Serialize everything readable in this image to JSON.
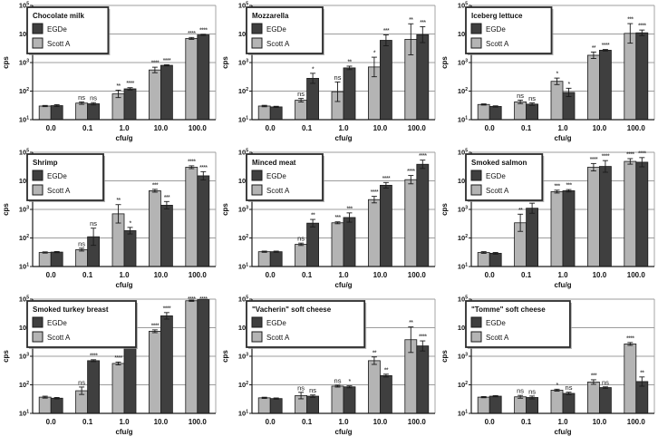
{
  "figure": {
    "background": "#ffffff",
    "ylabel": "cps",
    "xlabel": "cfu/g",
    "categories": [
      "0.0",
      "0.1",
      "1.0",
      "10.0",
      "100.0"
    ],
    "ytick_base": "10",
    "ytick_exponents": [
      1,
      2,
      3,
      4,
      5
    ],
    "legend_order": [
      "EGDe",
      "Scott A"
    ],
    "bar_order": [
      "Scott A",
      "EGDe"
    ],
    "colors": {
      "EGDe": "#3f3f3f",
      "Scott A": "#b4b4b4",
      "grid": "#9c9c9c",
      "axis": "#1a1a1a",
      "legend_border": "#2b2b2b",
      "legend_shadow": "#999999"
    }
  },
  "chart_data": [
    {
      "type": "bar",
      "title": "Chocolate milk",
      "xlabel": "cfu/g",
      "ylabel": "cps",
      "yscale": "log",
      "ylim": [
        10,
        100000
      ],
      "categories": [
        "0.0",
        "0.1",
        "1.0",
        "10.0",
        "100.0"
      ],
      "series": [
        {
          "name": "Scott A",
          "values": [
            30,
            38,
            80,
            550,
            7000
          ],
          "err_factor": [
            1.05,
            1.1,
            1.35,
            1.25,
            1.08
          ],
          "sig": [
            "",
            "ns",
            "**",
            "****",
            "****"
          ]
        },
        {
          "name": "EGDe",
          "values": [
            31,
            36,
            120,
            800,
            9300
          ],
          "err_factor": [
            1.08,
            1.1,
            1.1,
            1.05,
            1.04
          ],
          "sig": [
            "",
            "ns",
            "****",
            "****",
            "****"
          ]
        }
      ]
    },
    {
      "type": "bar",
      "title": "Mozzarella",
      "xlabel": "cfu/g",
      "ylabel": "cps",
      "yscale": "log",
      "ylim": [
        10,
        100000
      ],
      "categories": [
        "0.0",
        "0.1",
        "1.0",
        "10.0",
        "100.0"
      ],
      "series": [
        {
          "name": "Scott A",
          "values": [
            30,
            48,
            95,
            700,
            6500
          ],
          "err_factor": [
            1.06,
            1.15,
            2.2,
            2.2,
            3.5
          ],
          "sig": [
            "",
            "ns",
            "ns",
            "*",
            "**"
          ]
        },
        {
          "name": "EGDe",
          "values": [
            28,
            280,
            650,
            6000,
            9500
          ],
          "err_factor": [
            1.05,
            1.5,
            1.15,
            1.55,
            1.9
          ],
          "sig": [
            "",
            "*",
            "**",
            "***",
            "***"
          ]
        }
      ]
    },
    {
      "type": "bar",
      "title": "Iceberg lettuce",
      "xlabel": "cfu/g",
      "ylabel": "cps",
      "yscale": "log",
      "ylim": [
        10,
        100000
      ],
      "categories": [
        "0.0",
        "0.1",
        "1.0",
        "10.0",
        "100.0"
      ],
      "series": [
        {
          "name": "Scott A",
          "values": [
            34,
            42,
            220,
            1800,
            10500
          ],
          "err_factor": [
            1.05,
            1.15,
            1.3,
            1.3,
            2.2
          ],
          "sig": [
            "",
            "ns",
            "*",
            "**",
            "***"
          ]
        },
        {
          "name": "EGDe",
          "values": [
            29,
            35,
            90,
            2700,
            11000
          ],
          "err_factor": [
            1.05,
            1.1,
            1.4,
            1.06,
            1.25
          ],
          "sig": [
            "",
            "ns",
            "*",
            "****",
            "****"
          ]
        }
      ]
    },
    {
      "type": "bar",
      "title": "Shrimp",
      "xlabel": "cfu/g",
      "ylabel": "cps",
      "yscale": "log",
      "ylim": [
        10,
        100000
      ],
      "categories": [
        "0.0",
        "0.1",
        "1.0",
        "10.0",
        "100.0"
      ],
      "series": [
        {
          "name": "Scott A",
          "values": [
            31,
            39,
            700,
            4500,
            30000
          ],
          "err_factor": [
            1.05,
            1.12,
            2.1,
            1.12,
            1.12
          ],
          "sig": [
            "",
            "ns",
            "**",
            "***",
            "****"
          ]
        },
        {
          "name": "EGDe",
          "values": [
            32,
            110,
            180,
            1400,
            15000
          ],
          "err_factor": [
            1.05,
            2.0,
            1.3,
            1.35,
            1.4
          ],
          "sig": [
            "",
            "ns",
            "*",
            "***",
            "****"
          ]
        }
      ]
    },
    {
      "type": "bar",
      "title": "Minced meat",
      "xlabel": "cfu/g",
      "ylabel": "cps",
      "yscale": "log",
      "ylim": [
        10,
        100000
      ],
      "categories": [
        "0.0",
        "0.1",
        "1.0",
        "10.0",
        "100.0"
      ],
      "series": [
        {
          "name": "Scott A",
          "values": [
            33,
            60,
            340,
            2200,
            11000
          ],
          "err_factor": [
            1.05,
            1.1,
            1.08,
            1.3,
            1.4
          ],
          "sig": [
            "",
            "ns",
            "***",
            "****",
            "****"
          ]
        },
        {
          "name": "EGDe",
          "values": [
            33,
            330,
            520,
            7000,
            38000
          ],
          "err_factor": [
            1.05,
            1.35,
            1.45,
            1.25,
            1.4
          ],
          "sig": [
            "",
            "**",
            "***",
            "****",
            "****"
          ]
        }
      ]
    },
    {
      "type": "bar",
      "title": "Smoked salmon",
      "xlabel": "cfu/g",
      "ylabel": "cps",
      "yscale": "log",
      "ylim": [
        10,
        100000
      ],
      "categories": [
        "0.0",
        "0.1",
        "1.0",
        "10.0",
        "100.0"
      ],
      "series": [
        {
          "name": "Scott A",
          "values": [
            31,
            340,
            4200,
            30000,
            48000
          ],
          "err_factor": [
            1.07,
            2.0,
            1.12,
            1.35,
            1.25
          ],
          "sig": [
            "",
            "**",
            "***",
            "****",
            "****"
          ]
        },
        {
          "name": "EGDe",
          "values": [
            29,
            1100,
            4500,
            32000,
            45000
          ],
          "err_factor": [
            1.07,
            1.5,
            1.1,
            1.6,
            1.45
          ],
          "sig": [
            "",
            "***",
            "***",
            "****",
            "****"
          ]
        }
      ]
    },
    {
      "type": "bar",
      "title": "Smoked turkey breast",
      "xlabel": "cfu/g",
      "ylabel": "cps",
      "yscale": "log",
      "ylim": [
        10,
        100000
      ],
      "categories": [
        "0.0",
        "0.1",
        "1.0",
        "10.0",
        "100.0"
      ],
      "series": [
        {
          "name": "Scott A",
          "values": [
            37,
            62,
            560,
            7500,
            88000
          ],
          "err_factor": [
            1.08,
            1.35,
            1.12,
            1.12,
            1.05
          ],
          "sig": [
            "",
            "ns",
            "****",
            "****",
            "****"
          ]
        },
        {
          "name": "EGDe",
          "values": [
            34,
            700,
            2600,
            26000,
            96000
          ],
          "err_factor": [
            1.06,
            1.08,
            1.25,
            1.3,
            1.02
          ],
          "sig": [
            "",
            "****",
            "****",
            "****",
            "****"
          ]
        }
      ]
    },
    {
      "type": "bar",
      "title": "\"Vacherin\" soft cheese",
      "xlabel": "cfu/g",
      "ylabel": "cps",
      "yscale": "log",
      "ylim": [
        10,
        100000
      ],
      "categories": [
        "0.0",
        "0.1",
        "1.0",
        "10.0",
        "100.0"
      ],
      "series": [
        {
          "name": "Scott A",
          "values": [
            35,
            42,
            90,
            700,
            3800
          ],
          "err_factor": [
            1.05,
            1.3,
            1.08,
            1.35,
            2.8
          ],
          "sig": [
            "",
            "ns",
            "ns",
            "**",
            "**"
          ]
        },
        {
          "name": "EGDe",
          "values": [
            33,
            40,
            85,
            210,
            2300
          ],
          "err_factor": [
            1.05,
            1.1,
            1.08,
            1.12,
            1.5
          ],
          "sig": [
            "",
            "ns",
            "*",
            "**",
            "****"
          ]
        }
      ]
    },
    {
      "type": "bar",
      "title": "\"Tomme\" soft cheese",
      "xlabel": "cfu/g",
      "ylabel": "cps",
      "yscale": "log",
      "ylim": [
        10,
        100000
      ],
      "categories": [
        "0.0",
        "0.1",
        "1.0",
        "10.0",
        "100.0"
      ],
      "series": [
        {
          "name": "Scott A",
          "values": [
            37,
            38,
            65,
            125,
            2700
          ],
          "err_factor": [
            1.05,
            1.12,
            1.08,
            1.2,
            1.12
          ],
          "sig": [
            "",
            "ns",
            "*",
            "***",
            "****"
          ]
        },
        {
          "name": "EGDe",
          "values": [
            40,
            36,
            50,
            80,
            130
          ],
          "err_factor": [
            1.05,
            1.12,
            1.1,
            1.06,
            1.45
          ],
          "sig": [
            "",
            "ns",
            "ns",
            "ns",
            "**"
          ]
        }
      ]
    }
  ]
}
